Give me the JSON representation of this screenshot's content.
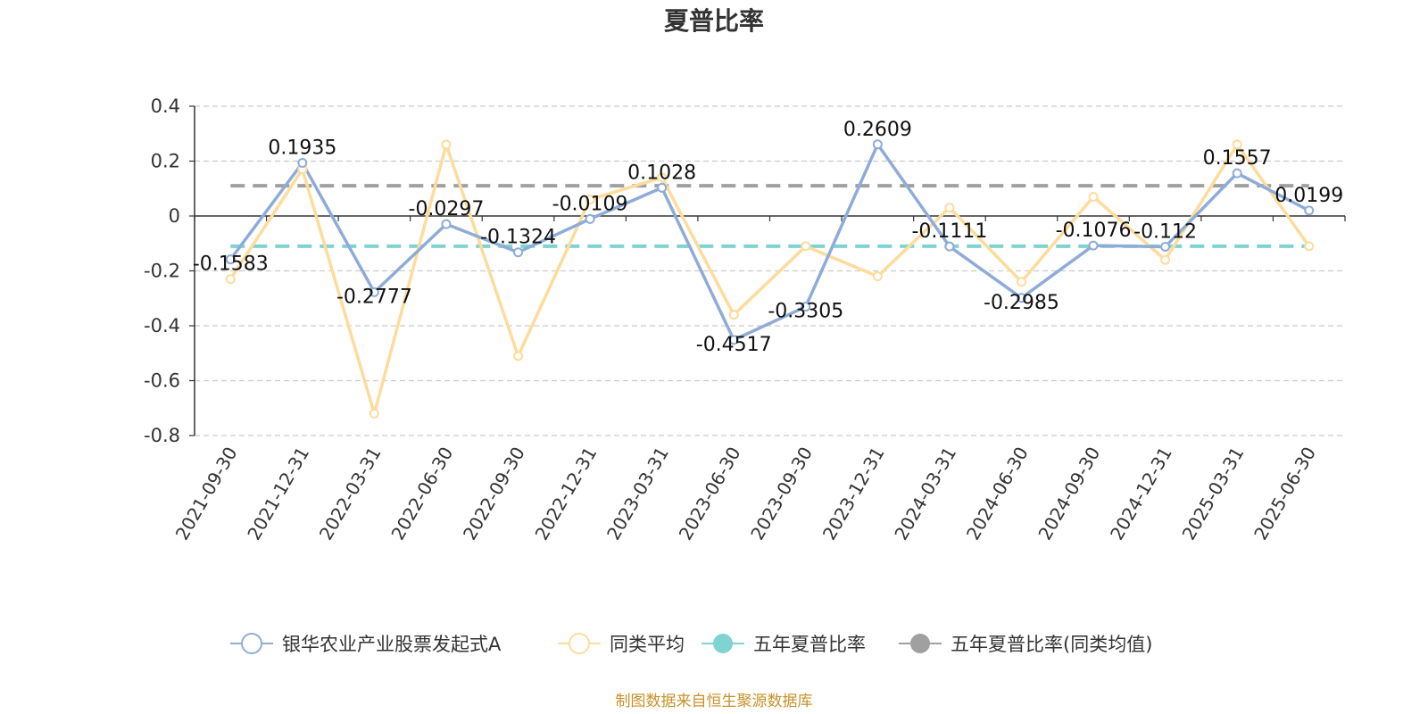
{
  "chart_data": {
    "type": "line",
    "title": "夏普比率",
    "categories": [
      "2021-09-30",
      "2021-12-31",
      "2022-03-31",
      "2022-06-30",
      "2022-09-30",
      "2022-12-31",
      "2023-03-31",
      "2023-06-30",
      "2023-09-30",
      "2023-12-31",
      "2024-03-31",
      "2024-06-30",
      "2024-09-30",
      "2024-12-31",
      "2025-03-31",
      "2025-06-30"
    ],
    "ylim": [
      -0.8,
      0.4
    ],
    "yticks": [
      "0.4",
      "0.2",
      "0",
      "-0.2",
      "-0.4",
      "-0.6",
      "-0.8"
    ],
    "grid": true,
    "legend_position": "bottom",
    "series": [
      {
        "name": "银华农业产业股票发起式A",
        "color": "#8eacd8",
        "values": [
          -0.1583,
          0.1935,
          -0.2777,
          -0.0297,
          -0.1324,
          -0.0109,
          0.1028,
          -0.4517,
          -0.3305,
          0.2609,
          -0.1111,
          -0.2985,
          -0.1076,
          -0.112,
          0.1557,
          0.0199
        ],
        "labels": [
          "-0.1583",
          "0.1935",
          "-0.2777",
          "-0.0297",
          "-0.1324",
          "-0.0109",
          "0.1028",
          "-0.4517",
          "-0.3305",
          "0.2609",
          "-0.1111",
          "-0.2985",
          "-0.1076",
          "-0.112",
          "0.1557",
          "0.0199"
        ]
      },
      {
        "name": "同类平均",
        "color": "#fddc9c",
        "values": [
          -0.23,
          0.17,
          -0.72,
          0.26,
          -0.51,
          0.06,
          0.14,
          -0.36,
          -0.11,
          -0.22,
          0.03,
          -0.24,
          0.07,
          -0.16,
          0.26,
          -0.11
        ]
      },
      {
        "name": "五年夏普比率",
        "color": "#7fd3d0",
        "type": "reference",
        "value": -0.11
      },
      {
        "name": "五年夏普比率(同类均值)",
        "color": "#a0a0a0",
        "type": "reference",
        "value": 0.11
      }
    ]
  },
  "source_text": "制图数据来自恒生聚源数据库",
  "source_color": "#c8922a"
}
